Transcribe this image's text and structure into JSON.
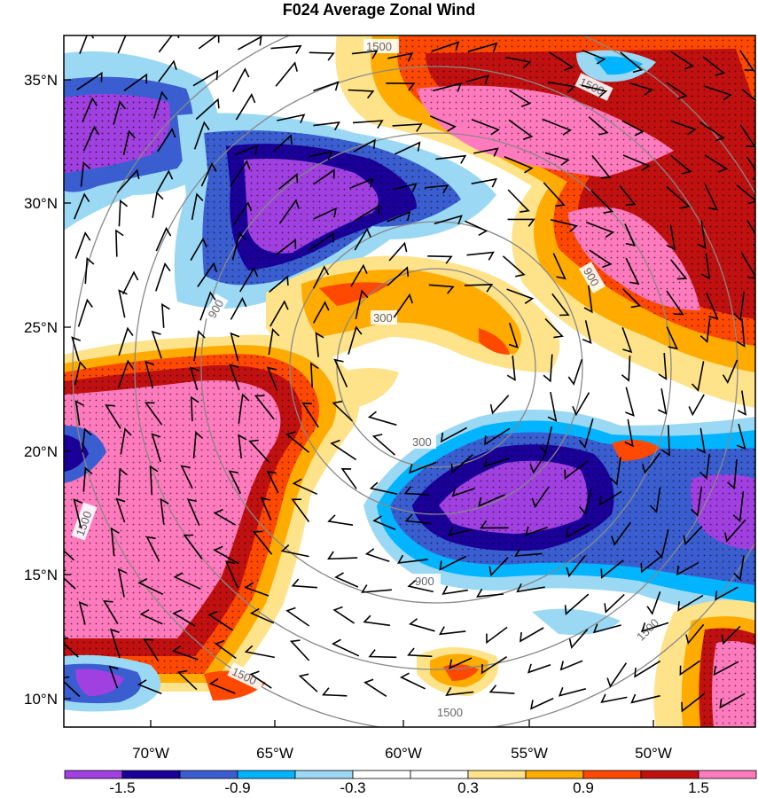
{
  "title": "F024 Average Zonal Wind",
  "lat_labels": [
    "35°N",
    "30°N",
    "25°N",
    "20°N",
    "15°N",
    "10°N"
  ],
  "lon_labels": [
    "70°W",
    "65°W",
    "60°W",
    "55°W",
    "50°W"
  ],
  "ring_labels": [
    "300",
    "900",
    "1500"
  ],
  "colorbar": {
    "colors": [
      "#a040e0",
      "#1a0099",
      "#3a5ed0",
      "#00b4ff",
      "#9ad8f4",
      "#ffffff",
      "#ffffff",
      "#ffe38a",
      "#ffab00",
      "#ff4800",
      "#c01010",
      "#ff7bbd"
    ],
    "tick_labels": [
      "-1.5",
      "-0.9",
      "-0.3",
      "0.3",
      "0.9",
      "1.5"
    ]
  }
}
